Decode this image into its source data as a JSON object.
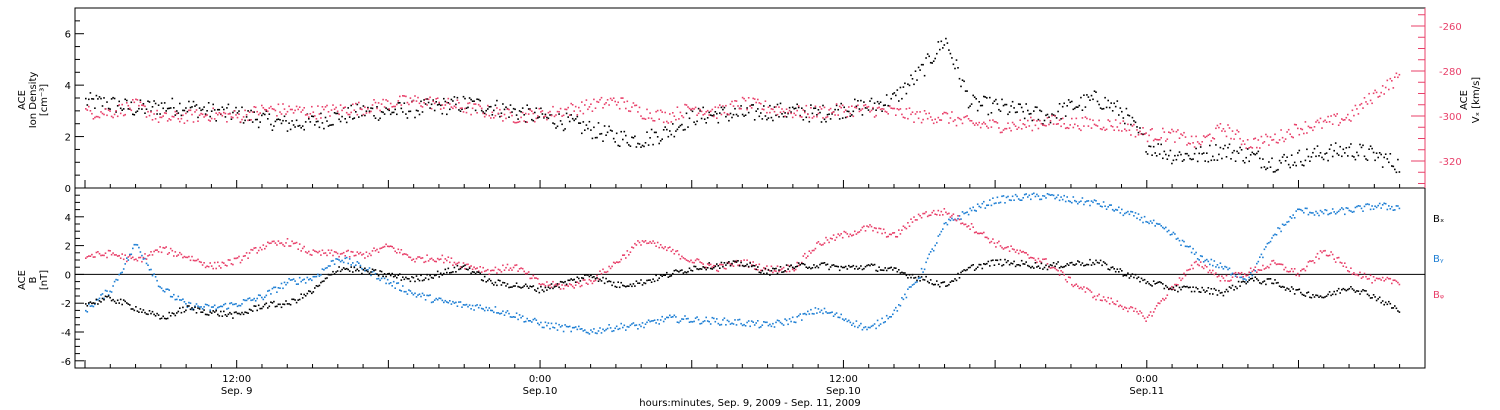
{
  "chart_data": [
    {
      "type": "scatter",
      "panel": "top",
      "ylabel_left": [
        "ACE",
        "Ion Density",
        "[cm⁻³]"
      ],
      "ylabel_right": [
        "ACE",
        "Vₓ [km/s]"
      ],
      "ylim_left": [
        0,
        7
      ],
      "left_ticks": [
        "0",
        "2",
        "4",
        "6"
      ],
      "ylim_right": [
        -332,
        -252
      ],
      "right_ticks": [
        "-260",
        "-280",
        "-300",
        "-320"
      ],
      "series": [
        {
          "axis": "left",
          "color": "#000000",
          "t": [
            0,
            1,
            2,
            3,
            4,
            5,
            6,
            7,
            8,
            9,
            10,
            11,
            12,
            13,
            14,
            15,
            16,
            17,
            18,
            19,
            20,
            21,
            22,
            23,
            24,
            25,
            26,
            27,
            28,
            29,
            30,
            31,
            32,
            33,
            34,
            35,
            36,
            37,
            38,
            39,
            40,
            41,
            42,
            43,
            44,
            45,
            46,
            47,
            48,
            49,
            50,
            51,
            52
          ],
          "values": [
            3.4,
            3.3,
            3.1,
            3.2,
            3.2,
            3.0,
            2.9,
            2.7,
            2.5,
            2.6,
            2.8,
            3.0,
            3.0,
            3.1,
            3.2,
            3.3,
            3.2,
            3.0,
            2.8,
            2.6,
            2.3,
            2.0,
            1.9,
            2.2,
            2.8,
            2.9,
            2.9,
            3.0,
            3.0,
            2.9,
            3.1,
            3.2,
            3.5,
            4.5,
            5.8,
            3.3,
            3.2,
            3.0,
            2.8,
            3.2,
            3.5,
            3.0,
            1.7,
            1.3,
            1.3,
            1.5,
            1.3,
            1.0,
            1.2,
            1.4,
            1.5,
            1.3,
            0.9
          ]
        },
        {
          "axis": "right",
          "color": "#e8406a",
          "t": [
            0,
            1,
            2,
            3,
            4,
            5,
            6,
            7,
            8,
            9,
            10,
            11,
            12,
            13,
            14,
            15,
            16,
            17,
            18,
            19,
            20,
            21,
            22,
            23,
            24,
            25,
            26,
            27,
            28,
            29,
            30,
            31,
            32,
            33,
            34,
            35,
            36,
            37,
            38,
            39,
            40,
            41,
            42,
            43,
            44,
            45,
            46,
            47,
            48,
            49,
            50,
            51,
            52
          ],
          "values": [
            -298,
            -298,
            -295,
            -301,
            -300,
            -299,
            -300,
            -297,
            -297,
            -298,
            -297,
            -296,
            -294,
            -293,
            -294,
            -296,
            -298,
            -300,
            -299,
            -297,
            -295,
            -293,
            -298,
            -300,
            -296,
            -298,
            -294,
            -296,
            -298,
            -298,
            -297,
            -297,
            -298,
            -300,
            -300,
            -303,
            -304,
            -304,
            -302,
            -303,
            -303,
            -304,
            -308,
            -308,
            -312,
            -305,
            -312,
            -310,
            -305,
            -303,
            -300,
            -290,
            -282
          ]
        }
      ]
    },
    {
      "type": "scatter",
      "panel": "bottom",
      "ylabel_left": [
        "ACE",
        "B",
        "[nT]"
      ],
      "ylim_left": [
        -6.5,
        6
      ],
      "left_ticks": [
        "-6",
        "-4",
        "-2",
        "0",
        "2",
        "4"
      ],
      "zero_line": true,
      "series": [
        {
          "name": "Bₓ",
          "color": "#000000",
          "t": [
            0,
            1,
            2,
            3,
            4,
            5,
            6,
            7,
            8,
            9,
            10,
            11,
            12,
            13,
            14,
            15,
            16,
            17,
            18,
            19,
            20,
            21,
            22,
            23,
            24,
            25,
            26,
            27,
            28,
            29,
            30,
            31,
            32,
            33,
            34,
            35,
            36,
            37,
            38,
            39,
            40,
            41,
            42,
            43,
            44,
            45,
            46,
            47,
            48,
            49,
            50,
            51,
            52
          ],
          "values": [
            -2.0,
            -1.6,
            -2.3,
            -3.0,
            -2.3,
            -2.6,
            -2.8,
            -2.1,
            -2.0,
            -1.1,
            0.5,
            0.3,
            0.0,
            -0.3,
            0.1,
            0.6,
            -0.5,
            -0.7,
            -1.0,
            -0.5,
            0.0,
            -0.7,
            -0.5,
            0.0,
            0.5,
            0.7,
            0.8,
            0.2,
            0.6,
            0.7,
            0.5,
            0.6,
            0.3,
            -0.2,
            -0.7,
            0.5,
            0.9,
            0.8,
            0.6,
            0.8,
            0.9,
            0.2,
            -0.5,
            -0.9,
            -1.0,
            -1.2,
            -0.3,
            -0.5,
            -1.2,
            -1.5,
            -0.8,
            -1.5,
            -2.5
          ]
        },
        {
          "name": "Bᵧ",
          "color": "#1f7fd4",
          "t": [
            0,
            1,
            2,
            3,
            4,
            5,
            6,
            7,
            8,
            9,
            10,
            11,
            12,
            13,
            14,
            15,
            16,
            17,
            18,
            19,
            20,
            21,
            22,
            23,
            24,
            25,
            26,
            27,
            28,
            29,
            30,
            31,
            32,
            33,
            34,
            35,
            36,
            37,
            38,
            39,
            40,
            41,
            42,
            43,
            44,
            45,
            46,
            47,
            48,
            49,
            50,
            51,
            52
          ],
          "values": [
            -2.4,
            -1.0,
            2.2,
            -0.9,
            -2.1,
            -2.3,
            -2.0,
            -1.5,
            -0.5,
            -0.2,
            1.2,
            0.5,
            -0.5,
            -1.3,
            -1.8,
            -2.1,
            -2.3,
            -2.8,
            -3.4,
            -3.7,
            -3.9,
            -3.6,
            -3.5,
            -3.0,
            -3.1,
            -3.2,
            -3.3,
            -3.5,
            -3.1,
            -2.4,
            -3.0,
            -3.8,
            -2.5,
            0.0,
            3.5,
            4.5,
            5.2,
            5.4,
            5.5,
            5.2,
            5.0,
            4.4,
            3.8,
            2.8,
            1.3,
            0.5,
            -0.3,
            2.8,
            4.5,
            4.3,
            4.5,
            4.8,
            4.7
          ]
        },
        {
          "name": "Bᵩ",
          "color": "#e8406a",
          "t": [
            0,
            1,
            2,
            3,
            4,
            5,
            6,
            7,
            8,
            9,
            10,
            11,
            12,
            13,
            14,
            15,
            16,
            17,
            18,
            19,
            20,
            21,
            22,
            23,
            24,
            25,
            26,
            27,
            28,
            29,
            30,
            31,
            32,
            33,
            34,
            35,
            36,
            37,
            38,
            39,
            40,
            41,
            42,
            43,
            44,
            45,
            46,
            47,
            48,
            49,
            50,
            51,
            52
          ],
          "values": [
            1.3,
            1.5,
            1.0,
            1.8,
            1.3,
            0.6,
            1.0,
            2.0,
            2.3,
            1.5,
            1.5,
            1.4,
            2.0,
            1.1,
            1.2,
            0.7,
            0.3,
            0.6,
            -0.6,
            -0.8,
            -0.4,
            0.9,
            2.4,
            1.8,
            1.0,
            0.5,
            0.9,
            0.4,
            0.5,
            2.2,
            2.8,
            3.3,
            2.7,
            4.2,
            4.4,
            3.4,
            2.2,
            1.5,
            0.9,
            -0.5,
            -1.5,
            -2.1,
            -3.0,
            -0.8,
            0.9,
            -0.3,
            0.2,
            0.8,
            0.1,
            1.7,
            0.4,
            -0.4,
            -0.4
          ]
        }
      ],
      "legend": [
        "Bₓ",
        "Bᵧ",
        "Bᵩ"
      ]
    }
  ],
  "x_axis": {
    "ticks": [
      {
        "t": 6,
        "line1": "12:00",
        "line2": "Sep. 9"
      },
      {
        "t": 18,
        "line1": "0:00",
        "line2": "Sep.10"
      },
      {
        "t": 30,
        "line1": "12:00",
        "line2": "Sep.10"
      },
      {
        "t": 42,
        "line1": "0:00",
        "line2": "Sep.11"
      }
    ],
    "title": "hours:minutes, Sep.  9, 2009 - Sep. 11, 2009"
  }
}
